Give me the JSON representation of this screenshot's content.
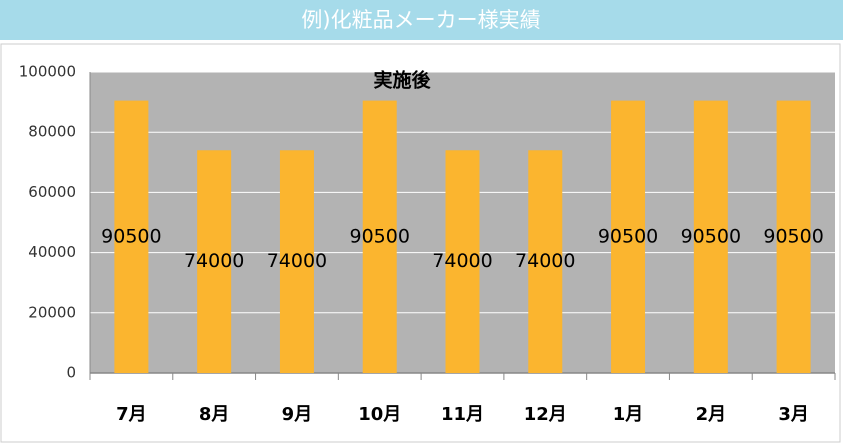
{
  "header": "例)化粧品メーカー様実績",
  "chart_data": {
    "type": "bar",
    "title": "実施後",
    "categories": [
      "7月",
      "8月",
      "9月",
      "10月",
      "11月",
      "12月",
      "1月",
      "2月",
      "3月"
    ],
    "values": [
      90500,
      74000,
      74000,
      90500,
      74000,
      74000,
      90500,
      90500,
      90500
    ],
    "color": "#fbb52f",
    "ylim": [
      0,
      100000
    ],
    "yticks": [
      0,
      20000,
      40000,
      60000,
      80000,
      100000
    ],
    "grid": true
  }
}
